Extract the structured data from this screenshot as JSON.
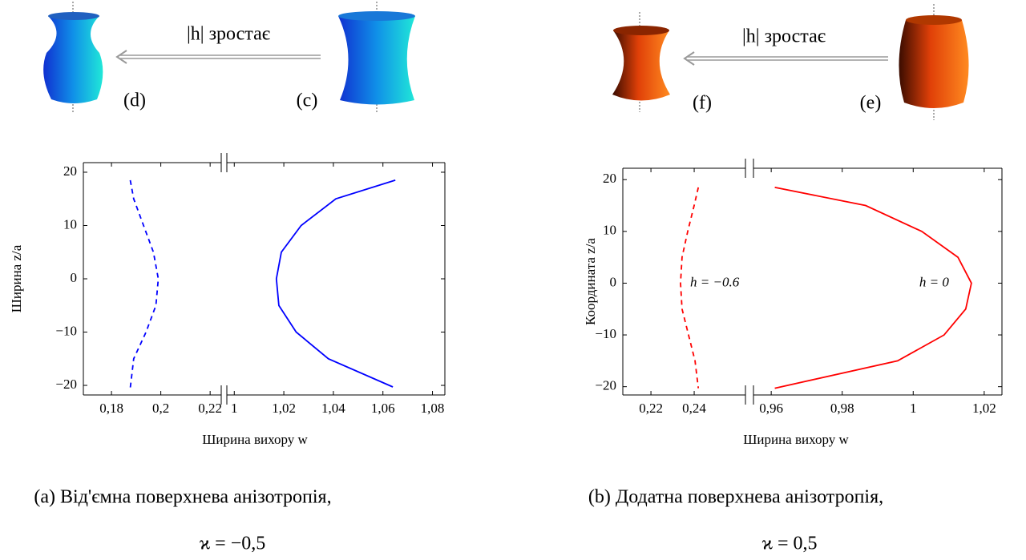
{
  "chart_data": [
    {
      "type": "line",
      "illustration": {
        "arrow_label": "|h| зростає",
        "left_label": "(d)",
        "right_label": "(c)"
      },
      "caption": "(a)  Від'ємна поверхнева анізотропія,",
      "caption_formula": "ϰ = −0,5",
      "x_label": "Ширина вихору w",
      "y_label": "Ширина z/a",
      "ylim": [
        -21.8,
        21.8
      ],
      "yticks": [
        {
          "value": -20,
          "label": "−20"
        },
        {
          "value": -10,
          "label": "−10"
        },
        0,
        10,
        20
      ],
      "x_segments": [
        {
          "xlim": [
            0.1686,
            0.2245
          ],
          "xticks": [
            {
              "value": 0.18,
              "label": "0,18"
            },
            {
              "value": 0.2,
              "label": "0,2"
            },
            {
              "value": 0.22,
              "label": "0,22"
            }
          ],
          "series": [
            {
              "color": "#0000ff",
              "line_style": "dashed",
              "x": [
                0.1876,
                0.189,
                0.193,
                0.197,
                0.199,
                0.198,
                0.194,
                0.189,
                0.1876
              ],
              "values": [
                18.5,
                15,
                10,
                5,
                0,
                -5,
                -10,
                -15,
                -20.5
              ]
            }
          ]
        },
        {
          "xlim": [
            0.997,
            1.085
          ],
          "xticks": [
            1,
            {
              "value": 1.02,
              "label": "1,02"
            },
            {
              "value": 1.04,
              "label": "1,04"
            },
            {
              "value": 1.06,
              "label": "1,06"
            },
            {
              "value": 1.08,
              "label": "1,08"
            }
          ],
          "series": [
            {
              "color": "#0000ff",
              "line_style": "solid",
              "x": [
                1.065,
                1.041,
                1.027,
                1.019,
                1.017,
                1.018,
                1.025,
                1.038,
                1.064
              ],
              "values": [
                18.5,
                15,
                10,
                5,
                0,
                -5,
                -10,
                -15,
                -20.3
              ]
            }
          ]
        }
      ]
    },
    {
      "type": "line",
      "illustration": {
        "arrow_label": "|h| зростає",
        "left_label": "(f)",
        "right_label": "(e)"
      },
      "caption": "(b) Додатна поверхнева анізотропія,",
      "caption_formula": "ϰ = 0,5",
      "x_label": "Ширина вихору w",
      "y_label": "Координата z/a",
      "ylim": [
        -21.6,
        22.2
      ],
      "yticks": [
        {
          "value": -20,
          "label": "−20"
        },
        {
          "value": -10,
          "label": "−10"
        },
        0,
        10,
        20
      ],
      "x_segments": [
        {
          "xlim": [
            0.207,
            0.2637
          ],
          "xticks": [
            {
              "value": 0.22,
              "label": "0,22"
            },
            {
              "value": 0.24,
              "label": "0,24"
            }
          ],
          "series": [
            {
              "name": "h = −0.6",
              "color": "#ff0000",
              "line_style": "dashed",
              "x": [
                0.2419,
                0.24,
                0.237,
                0.2344,
                0.2337,
                0.2344,
                0.2374,
                0.2404,
                0.2419
              ],
              "values": [
                18.5,
                15,
                10,
                5,
                0,
                -5,
                -10,
                -15,
                -20.3
              ]
            }
          ]
        },
        {
          "xlim": [
            0.955,
            1.025
          ],
          "xticks": [
            {
              "value": 0.96,
              "label": "0,96"
            },
            {
              "value": 0.98,
              "label": "0,98"
            },
            1,
            {
              "value": 1.02,
              "label": "1,02"
            }
          ],
          "series": [
            {
              "name": "h = 0",
              "color": "#ff0000",
              "line_style": "solid",
              "x": [
                0.961,
                0.9866,
                1.0024,
                1.0126,
                1.0164,
                1.0148,
                1.0087,
                0.9956,
                0.961
              ],
              "values": [
                18.5,
                15,
                10,
                5,
                0,
                -5,
                -10,
                -15,
                -20.3
              ]
            }
          ]
        }
      ]
    }
  ]
}
